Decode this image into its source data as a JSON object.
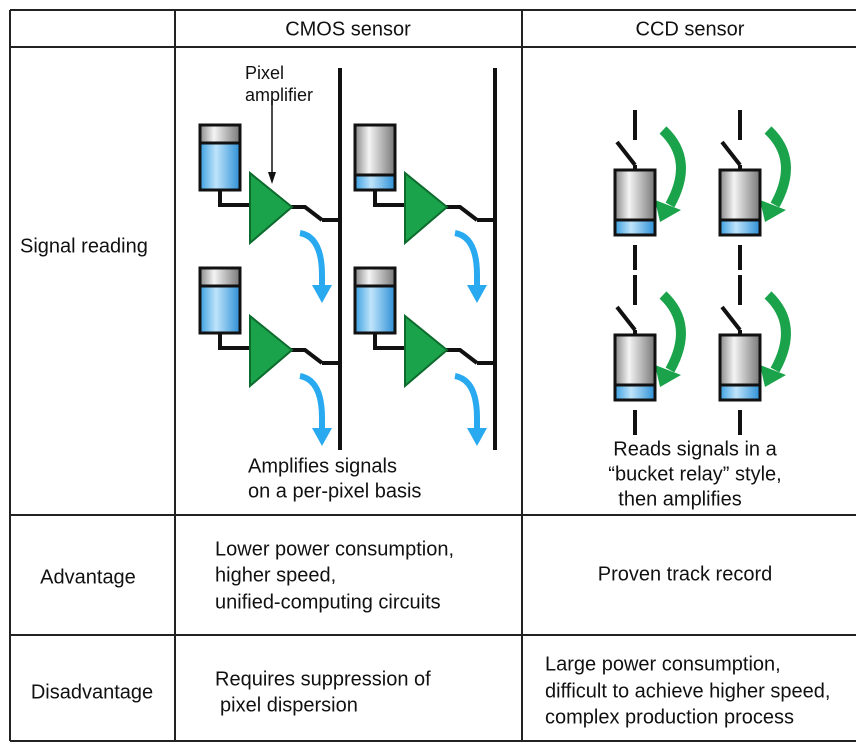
{
  "header": {
    "columns": [
      "CMOS sensor",
      "CCD sensor"
    ]
  },
  "rows": [
    {
      "label": "Signal reading",
      "cmos": {
        "annotation": [
          "Pixel",
          "amplifier"
        ],
        "caption": [
          "Amplifies signals",
          "on a per-pixel basis"
        ]
      },
      "ccd": {
        "caption": [
          "Reads signals in a",
          "“bucket relay” style,",
          "then amplifies"
        ]
      }
    },
    {
      "label": "Advantage",
      "cmos": [
        "Lower power consumption,",
        "higher speed,",
        "unified-computing circuits"
      ],
      "ccd": [
        "Proven track record"
      ]
    },
    {
      "label": "Disadvantage",
      "cmos": [
        "Requires suppression of",
        "pixel dispersion"
      ],
      "ccd": [
        "Large power consumption,",
        "difficult to achieve higher speed,",
        "complex production process"
      ]
    }
  ]
}
